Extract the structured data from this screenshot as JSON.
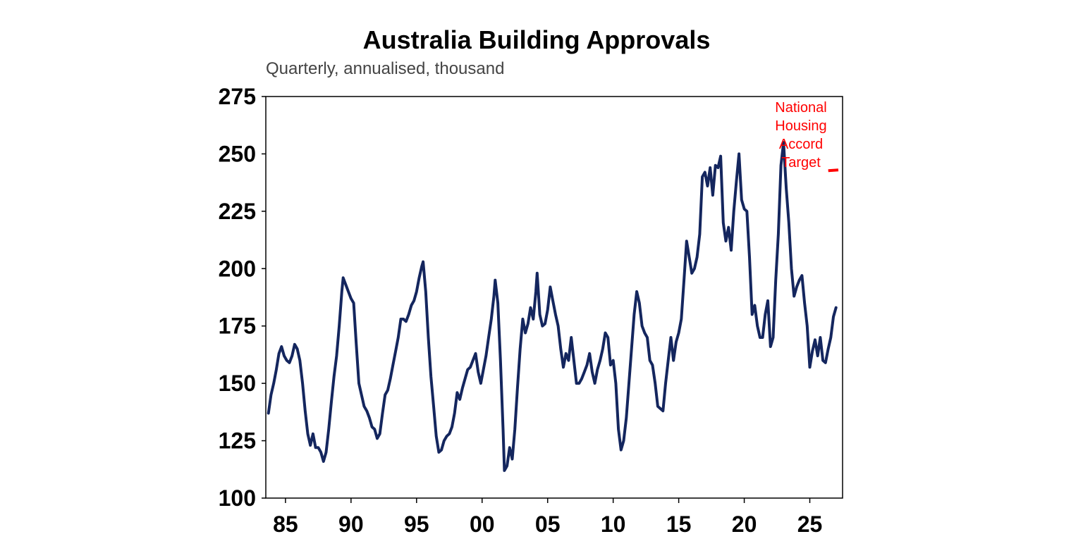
{
  "chart_data": {
    "type": "line",
    "title": "Australia Building Approvals",
    "subtitle": "Quarterly, annualised, thousand",
    "xlabel": "",
    "ylabel": "",
    "xlim": [
      1983.5,
      2027.5
    ],
    "ylim": [
      100,
      275
    ],
    "yticks": [
      100,
      125,
      150,
      175,
      200,
      225,
      250,
      275
    ],
    "xticks": [
      {
        "value": 1985,
        "label": "85"
      },
      {
        "value": 1990,
        "label": "90"
      },
      {
        "value": 1995,
        "label": "95"
      },
      {
        "value": 2000,
        "label": "00"
      },
      {
        "value": 2005,
        "label": "05"
      },
      {
        "value": 2010,
        "label": "10"
      },
      {
        "value": 2015,
        "label": "15"
      },
      {
        "value": 2020,
        "label": "20"
      },
      {
        "value": 2025,
        "label": "25"
      }
    ],
    "grid": false,
    "legend": "none",
    "colors": {
      "series": "#14265e",
      "target": "#ff0000"
    },
    "series": [
      {
        "values": [
          [
            1983.7,
            137
          ],
          [
            1983.9,
            145
          ],
          [
            1984.1,
            150
          ],
          [
            1984.3,
            156
          ],
          [
            1984.5,
            163
          ],
          [
            1984.7,
            166
          ],
          [
            1984.9,
            162
          ],
          [
            1985.1,
            160
          ],
          [
            1985.3,
            159
          ],
          [
            1985.5,
            162
          ],
          [
            1985.7,
            167
          ],
          [
            1985.9,
            165
          ],
          [
            1986.1,
            160
          ],
          [
            1986.3,
            150
          ],
          [
            1986.5,
            138
          ],
          [
            1986.7,
            128
          ],
          [
            1986.9,
            123
          ],
          [
            1987.1,
            128
          ],
          [
            1987.3,
            122
          ],
          [
            1987.5,
            122
          ],
          [
            1987.7,
            120
          ],
          [
            1987.9,
            116
          ],
          [
            1988.1,
            120
          ],
          [
            1988.3,
            130
          ],
          [
            1988.5,
            142
          ],
          [
            1988.7,
            153
          ],
          [
            1988.9,
            162
          ],
          [
            1989.1,
            175
          ],
          [
            1989.3,
            190
          ],
          [
            1989.4,
            196
          ],
          [
            1989.6,
            193
          ],
          [
            1989.8,
            190
          ],
          [
            1990.0,
            187
          ],
          [
            1990.2,
            185
          ],
          [
            1990.4,
            167
          ],
          [
            1990.6,
            150
          ],
          [
            1990.8,
            145
          ],
          [
            1991.0,
            140
          ],
          [
            1991.2,
            138
          ],
          [
            1991.4,
            135
          ],
          [
            1991.6,
            131
          ],
          [
            1991.8,
            130
          ],
          [
            1992.0,
            126
          ],
          [
            1992.2,
            128
          ],
          [
            1992.4,
            137
          ],
          [
            1992.6,
            145
          ],
          [
            1992.8,
            147
          ],
          [
            1993.0,
            152
          ],
          [
            1993.2,
            158
          ],
          [
            1993.4,
            164
          ],
          [
            1993.6,
            170
          ],
          [
            1993.8,
            178
          ],
          [
            1994.0,
            178
          ],
          [
            1994.2,
            177
          ],
          [
            1994.4,
            180
          ],
          [
            1994.6,
            184
          ],
          [
            1994.8,
            186
          ],
          [
            1995.0,
            190
          ],
          [
            1995.2,
            196
          ],
          [
            1995.4,
            201
          ],
          [
            1995.5,
            203
          ],
          [
            1995.7,
            190
          ],
          [
            1995.9,
            170
          ],
          [
            1996.1,
            153
          ],
          [
            1996.3,
            140
          ],
          [
            1996.5,
            127
          ],
          [
            1996.7,
            120
          ],
          [
            1996.9,
            121
          ],
          [
            1997.1,
            125
          ],
          [
            1997.3,
            127
          ],
          [
            1997.5,
            128
          ],
          [
            1997.7,
            131
          ],
          [
            1997.9,
            137
          ],
          [
            1998.1,
            146
          ],
          [
            1998.3,
            143
          ],
          [
            1998.5,
            148
          ],
          [
            1998.7,
            152
          ],
          [
            1998.9,
            156
          ],
          [
            1999.1,
            157
          ],
          [
            1999.3,
            160
          ],
          [
            1999.5,
            163
          ],
          [
            1999.7,
            155
          ],
          [
            1999.9,
            150
          ],
          [
            2000.1,
            156
          ],
          [
            2000.3,
            162
          ],
          [
            2000.5,
            170
          ],
          [
            2000.7,
            178
          ],
          [
            2000.9,
            188
          ],
          [
            2001.0,
            195
          ],
          [
            2001.2,
            185
          ],
          [
            2001.4,
            160
          ],
          [
            2001.6,
            130
          ],
          [
            2001.7,
            112
          ],
          [
            2001.9,
            114
          ],
          [
            2002.1,
            122
          ],
          [
            2002.3,
            117
          ],
          [
            2002.5,
            130
          ],
          [
            2002.7,
            148
          ],
          [
            2002.9,
            165
          ],
          [
            2003.1,
            178
          ],
          [
            2003.3,
            172
          ],
          [
            2003.5,
            176
          ],
          [
            2003.7,
            183
          ],
          [
            2003.9,
            178
          ],
          [
            2004.1,
            190
          ],
          [
            2004.2,
            198
          ],
          [
            2004.4,
            180
          ],
          [
            2004.6,
            175
          ],
          [
            2004.8,
            176
          ],
          [
            2005.0,
            182
          ],
          [
            2005.2,
            192
          ],
          [
            2005.4,
            186
          ],
          [
            2005.6,
            180
          ],
          [
            2005.8,
            175
          ],
          [
            2006.0,
            165
          ],
          [
            2006.2,
            157
          ],
          [
            2006.4,
            163
          ],
          [
            2006.6,
            160
          ],
          [
            2006.8,
            170
          ],
          [
            2007.0,
            160
          ],
          [
            2007.2,
            150
          ],
          [
            2007.4,
            150
          ],
          [
            2007.6,
            152
          ],
          [
            2007.8,
            155
          ],
          [
            2008.0,
            158
          ],
          [
            2008.2,
            163
          ],
          [
            2008.4,
            155
          ],
          [
            2008.6,
            150
          ],
          [
            2008.8,
            156
          ],
          [
            2009.0,
            160
          ],
          [
            2009.2,
            165
          ],
          [
            2009.4,
            172
          ],
          [
            2009.6,
            170
          ],
          [
            2009.8,
            158
          ],
          [
            2010.0,
            160
          ],
          [
            2010.2,
            150
          ],
          [
            2010.4,
            130
          ],
          [
            2010.6,
            121
          ],
          [
            2010.8,
            125
          ],
          [
            2011.0,
            135
          ],
          [
            2011.2,
            150
          ],
          [
            2011.4,
            165
          ],
          [
            2011.6,
            180
          ],
          [
            2011.8,
            190
          ],
          [
            2012.0,
            185
          ],
          [
            2012.2,
            175
          ],
          [
            2012.4,
            172
          ],
          [
            2012.6,
            170
          ],
          [
            2012.8,
            160
          ],
          [
            2013.0,
            158
          ],
          [
            2013.2,
            150
          ],
          [
            2013.4,
            140
          ],
          [
            2013.6,
            139
          ],
          [
            2013.8,
            138
          ],
          [
            2014.0,
            150
          ],
          [
            2014.2,
            160
          ],
          [
            2014.4,
            170
          ],
          [
            2014.6,
            160
          ],
          [
            2014.8,
            168
          ],
          [
            2015.0,
            172
          ],
          [
            2015.2,
            178
          ],
          [
            2015.4,
            195
          ],
          [
            2015.6,
            212
          ],
          [
            2015.8,
            205
          ],
          [
            2016.0,
            198
          ],
          [
            2016.2,
            200
          ],
          [
            2016.4,
            205
          ],
          [
            2016.6,
            215
          ],
          [
            2016.8,
            240
          ],
          [
            2017.0,
            242
          ],
          [
            2017.2,
            236
          ],
          [
            2017.4,
            244
          ],
          [
            2017.6,
            232
          ],
          [
            2017.8,
            245
          ],
          [
            2018.0,
            244
          ],
          [
            2018.2,
            249
          ],
          [
            2018.4,
            220
          ],
          [
            2018.6,
            212
          ],
          [
            2018.8,
            218
          ],
          [
            2019.0,
            208
          ],
          [
            2019.2,
            225
          ],
          [
            2019.4,
            238
          ],
          [
            2019.6,
            250
          ],
          [
            2019.8,
            230
          ],
          [
            2020.0,
            226
          ],
          [
            2020.2,
            225
          ],
          [
            2020.4,
            205
          ],
          [
            2020.6,
            180
          ],
          [
            2020.8,
            184
          ],
          [
            2021.0,
            175
          ],
          [
            2021.2,
            170
          ],
          [
            2021.4,
            170
          ],
          [
            2021.6,
            180
          ],
          [
            2021.8,
            186
          ],
          [
            2022.0,
            166
          ],
          [
            2022.2,
            170
          ],
          [
            2022.4,
            195
          ],
          [
            2022.6,
            215
          ],
          [
            2022.8,
            245
          ],
          [
            2023.0,
            255
          ],
          [
            2023.2,
            235
          ],
          [
            2023.4,
            220
          ],
          [
            2023.6,
            200
          ],
          [
            2023.8,
            188
          ],
          [
            2024.0,
            192
          ],
          [
            2024.2,
            195
          ],
          [
            2024.4,
            197
          ],
          [
            2024.6,
            185
          ],
          [
            2024.8,
            175
          ],
          [
            2025.0,
            157
          ],
          [
            2025.2,
            164
          ],
          [
            2025.4,
            169
          ],
          [
            2025.6,
            162
          ],
          [
            2025.8,
            170
          ],
          [
            2026.0,
            160
          ],
          [
            2026.2,
            159
          ],
          [
            2026.4,
            165
          ],
          [
            2026.6,
            170
          ],
          [
            2026.8,
            179
          ],
          [
            2027.0,
            183
          ]
        ]
      }
    ],
    "annotations": [
      {
        "lines": [
          "National",
          "Housing",
          "Accord",
          "Target"
        ],
        "target": {
          "x_start": 2026.3,
          "x_end": 2027.5,
          "value": 243
        }
      }
    ]
  }
}
